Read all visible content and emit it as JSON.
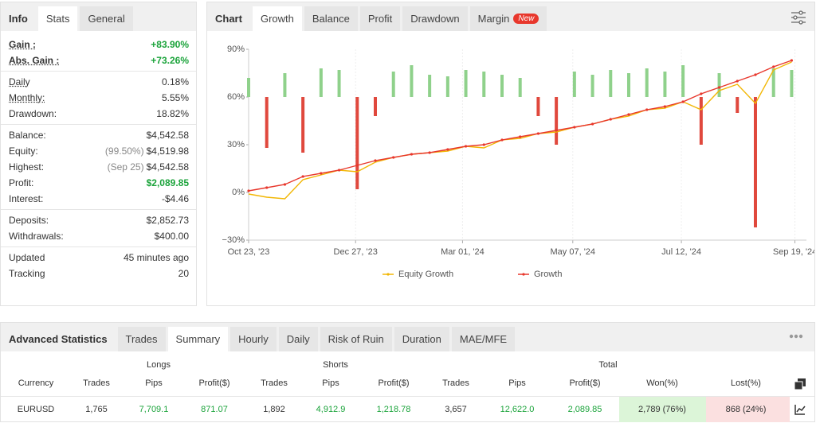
{
  "stats_panel": {
    "tabs": [
      "Info",
      "Stats",
      "General"
    ],
    "groups": [
      [
        {
          "label": "Gain :",
          "value": "+83.90%",
          "color": "#1aa33a"
        },
        {
          "label": "Abs. Gain :",
          "value": "+73.26%",
          "color": "#1aa33a"
        }
      ],
      [
        {
          "label": "Daily",
          "value": "0.18%"
        },
        {
          "label": "Monthly:",
          "value": "5.55%"
        },
        {
          "label": "Drawdown:",
          "value": "18.82%"
        }
      ],
      [
        {
          "label": "Balance:",
          "value": "$4,542.58"
        },
        {
          "label": "Equity:",
          "note": "(99.50%)",
          "value": "$4,519.98"
        },
        {
          "label": "Highest:",
          "note": "(Sep 25)",
          "value": "$4,542.58"
        },
        {
          "label": "Profit:",
          "value": "$2,089.85",
          "color": "#1aa33a"
        },
        {
          "label": "Interest:",
          "value": "-$4.46"
        }
      ],
      [
        {
          "label": "Deposits:",
          "value": "$2,852.73"
        },
        {
          "label": "Withdrawals:",
          "value": "$400.00"
        }
      ],
      [
        {
          "label": "Updated",
          "value": "45 minutes ago"
        },
        {
          "label": "Tracking",
          "value": "20"
        }
      ]
    ]
  },
  "chart_panel": {
    "title": "Chart",
    "tabs": [
      "Growth",
      "Balance",
      "Profit",
      "Drawdown",
      "Margin"
    ],
    "badge": "New"
  },
  "chart_data": {
    "type": "line",
    "x": [
      "2023-10-23",
      "2023-11-03",
      "2023-11-14",
      "2023-11-25",
      "2023-12-06",
      "2023-12-17",
      "2023-12-28",
      "2024-01-08",
      "2024-01-19",
      "2024-01-30",
      "2024-02-10",
      "2024-02-21",
      "2024-03-03",
      "2024-03-14",
      "2024-03-25",
      "2024-04-05",
      "2024-04-16",
      "2024-04-27",
      "2024-05-08",
      "2024-05-19",
      "2024-05-30",
      "2024-06-10",
      "2024-06-21",
      "2024-07-02",
      "2024-07-13",
      "2024-07-24",
      "2024-08-04",
      "2024-08-15",
      "2024-08-26",
      "2024-09-06",
      "2024-09-17"
    ],
    "series": [
      {
        "type": "bar",
        "color": "#8fd18b",
        "down_color": "#e0483d",
        "base": 60,
        "values": [
          72,
          28,
          75,
          25,
          78,
          77,
          2,
          48,
          76,
          80,
          74,
          73,
          77,
          76,
          74,
          72,
          48,
          30,
          76,
          74,
          77,
          75,
          78,
          76,
          80,
          30,
          75,
          50,
          -22,
          78,
          77
        ]
      },
      {
        "name": "Equity Growth",
        "color": "#f2b705",
        "values": [
          -1,
          -3,
          -4,
          8,
          11,
          14,
          13,
          19,
          22,
          24,
          25,
          26,
          29,
          28,
          33,
          34,
          37,
          38,
          41,
          43,
          46,
          48,
          52,
          53,
          57,
          52,
          64,
          68,
          56,
          77,
          82
        ]
      },
      {
        "name": "Growth",
        "color": "#e8372c",
        "values": [
          1,
          3,
          5,
          10,
          12,
          14,
          17,
          20,
          22,
          24,
          25,
          27,
          29,
          30,
          33,
          35,
          37,
          39,
          41,
          43,
          46,
          49,
          52,
          54,
          57,
          62,
          66,
          70,
          74,
          79,
          83
        ]
      }
    ],
    "xlim": [
      "2023-10-23",
      "2024-09-26"
    ],
    "xticks": [
      {
        "value": "2023-10-23",
        "label": "Oct 23, '23"
      },
      {
        "value": "2023-12-27",
        "label": "Dec 27, '23"
      },
      {
        "value": "2024-03-01",
        "label": "Mar 01, '24"
      },
      {
        "value": "2024-05-07",
        "label": "May 07, '24"
      },
      {
        "value": "2024-07-12",
        "label": "Jul 12, '24"
      },
      {
        "value": "2024-09-19",
        "label": "Sep 19, '24"
      }
    ],
    "ylim": [
      -30,
      90
    ],
    "yticks": [
      {
        "value": -30,
        "label": "−30%"
      },
      {
        "value": 0,
        "label": "0%"
      },
      {
        "value": 30,
        "label": "30%"
      },
      {
        "value": 60,
        "label": "60%"
      },
      {
        "value": 90,
        "label": "90%"
      }
    ]
  },
  "advanced": {
    "title": "Advanced Statistics",
    "tabs": [
      "Trades",
      "Summary",
      "Hourly",
      "Daily",
      "Risk of Ruin",
      "Duration",
      "MAE/MFE"
    ],
    "group_headers": [
      "Longs",
      "Shorts",
      "Total"
    ],
    "columns": [
      "Currency",
      "Trades",
      "Pips",
      "Profit($)",
      "Trades",
      "Pips",
      "Profit($)",
      "Trades",
      "Pips",
      "Profit($)",
      "Won(%)",
      "Lost(%)"
    ],
    "rows": [
      [
        "EURUSD",
        "1,765",
        "7,709.1",
        "871.07",
        "1,892",
        "4,912.9",
        "1,218.78",
        "3,657",
        "12,622.0",
        "2,089.85",
        "2,789 (76%)",
        "868 (24%)"
      ]
    ]
  }
}
